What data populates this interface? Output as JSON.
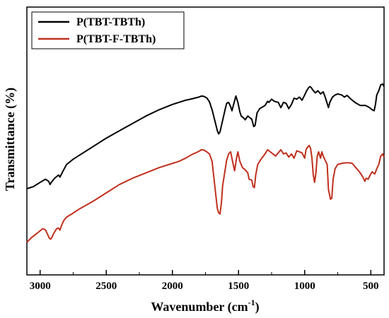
{
  "chart_data": {
    "type": "line",
    "title": "",
    "xlabel": "Wavenumber (cm",
    "xlabel_sup": "-1",
    "xlabel_close": ")",
    "ylabel": "Transmittance (%)",
    "xlim": [
      3100,
      400
    ],
    "x_reversed": true,
    "y_ticks_shown": false,
    "grid": false,
    "legend_position": "top-left",
    "xticks": [
      3000,
      2500,
      2000,
      1500,
      1000,
      500
    ],
    "xtick_labels": [
      "3000",
      "2500",
      "2000",
      "1500",
      "1000",
      "500"
    ],
    "series": [
      {
        "name": "P(TBT-TBTh)",
        "color": "#000000",
        "points": [
          [
            3100,
            0.255
          ],
          [
            3050,
            0.265
          ],
          [
            3000,
            0.285
          ],
          [
            2960,
            0.3
          ],
          [
            2935,
            0.29
          ],
          [
            2925,
            0.275
          ],
          [
            2915,
            0.285
          ],
          [
            2890,
            0.305
          ],
          [
            2860,
            0.32
          ],
          [
            2850,
            0.31
          ],
          [
            2830,
            0.335
          ],
          [
            2800,
            0.37
          ],
          [
            2750,
            0.395
          ],
          [
            2700,
            0.415
          ],
          [
            2600,
            0.455
          ],
          [
            2500,
            0.495
          ],
          [
            2400,
            0.53
          ],
          [
            2300,
            0.565
          ],
          [
            2200,
            0.6
          ],
          [
            2100,
            0.63
          ],
          [
            2000,
            0.655
          ],
          [
            1950,
            0.665
          ],
          [
            1900,
            0.675
          ],
          [
            1850,
            0.682
          ],
          [
            1800,
            0.69
          ],
          [
            1780,
            0.695
          ],
          [
            1760,
            0.693
          ],
          [
            1740,
            0.686
          ],
          [
            1720,
            0.668
          ],
          [
            1700,
            0.63
          ],
          [
            1680,
            0.58
          ],
          [
            1660,
            0.53
          ],
          [
            1650,
            0.515
          ],
          [
            1640,
            0.525
          ],
          [
            1620,
            0.58
          ],
          [
            1600,
            0.635
          ],
          [
            1590,
            0.66
          ],
          [
            1575,
            0.665
          ],
          [
            1560,
            0.645
          ],
          [
            1550,
            0.625
          ],
          [
            1535,
            0.66
          ],
          [
            1520,
            0.695
          ],
          [
            1505,
            0.665
          ],
          [
            1490,
            0.62
          ],
          [
            1480,
            0.6
          ],
          [
            1460,
            0.59
          ],
          [
            1450,
            0.582
          ],
          [
            1430,
            0.6
          ],
          [
            1400,
            0.585
          ],
          [
            1385,
            0.55
          ],
          [
            1375,
            0.555
          ],
          [
            1360,
            0.615
          ],
          [
            1340,
            0.635
          ],
          [
            1300,
            0.65
          ],
          [
            1280,
            0.67
          ],
          [
            1270,
            0.665
          ],
          [
            1250,
            0.68
          ],
          [
            1230,
            0.67
          ],
          [
            1200,
            0.665
          ],
          [
            1180,
            0.64
          ],
          [
            1160,
            0.665
          ],
          [
            1140,
            0.66
          ],
          [
            1120,
            0.635
          ],
          [
            1100,
            0.655
          ],
          [
            1080,
            0.685
          ],
          [
            1060,
            0.68
          ],
          [
            1040,
            0.69
          ],
          [
            1020,
            0.675
          ],
          [
            1000,
            0.7
          ],
          [
            985,
            0.72
          ],
          [
            970,
            0.735
          ],
          [
            960,
            0.74
          ],
          [
            950,
            0.735
          ],
          [
            940,
            0.725
          ],
          [
            920,
            0.71
          ],
          [
            900,
            0.72
          ],
          [
            880,
            0.705
          ],
          [
            860,
            0.715
          ],
          [
            845,
            0.69
          ],
          [
            830,
            0.66
          ],
          [
            820,
            0.64
          ],
          [
            810,
            0.665
          ],
          [
            790,
            0.69
          ],
          [
            770,
            0.7
          ],
          [
            750,
            0.705
          ],
          [
            720,
            0.7
          ],
          [
            700,
            0.69
          ],
          [
            680,
            0.698
          ],
          [
            650,
            0.68
          ],
          [
            620,
            0.665
          ],
          [
            580,
            0.65
          ],
          [
            540,
            0.65
          ],
          [
            510,
            0.64
          ],
          [
            490,
            0.63
          ],
          [
            475,
            0.625
          ],
          [
            465,
            0.655
          ],
          [
            455,
            0.7
          ],
          [
            440,
            0.72
          ],
          [
            425,
            0.748
          ],
          [
            410,
            0.752
          ],
          [
            400,
            0.74
          ]
        ]
      },
      {
        "name": "P(TBT-F-TBTh)",
        "color": "#c0301e",
        "points": [
          [
            3100,
            0.0
          ],
          [
            3070,
            0.02
          ],
          [
            3040,
            0.035
          ],
          [
            3010,
            0.05
          ],
          [
            2980,
            0.065
          ],
          [
            2960,
            0.06
          ],
          [
            2945,
            0.04
          ],
          [
            2930,
            0.02
          ],
          [
            2920,
            0.015
          ],
          [
            2910,
            0.025
          ],
          [
            2895,
            0.045
          ],
          [
            2875,
            0.065
          ],
          [
            2860,
            0.068
          ],
          [
            2850,
            0.058
          ],
          [
            2835,
            0.085
          ],
          [
            2820,
            0.105
          ],
          [
            2800,
            0.12
          ],
          [
            2760,
            0.135
          ],
          [
            2700,
            0.16
          ],
          [
            2600,
            0.195
          ],
          [
            2500,
            0.235
          ],
          [
            2400,
            0.275
          ],
          [
            2300,
            0.305
          ],
          [
            2200,
            0.33
          ],
          [
            2100,
            0.355
          ],
          [
            2000,
            0.375
          ],
          [
            1950,
            0.385
          ],
          [
            1900,
            0.4
          ],
          [
            1850,
            0.418
          ],
          [
            1800,
            0.432
          ],
          [
            1780,
            0.44
          ],
          [
            1760,
            0.438
          ],
          [
            1740,
            0.43
          ],
          [
            1720,
            0.42
          ],
          [
            1700,
            0.385
          ],
          [
            1685,
            0.3
          ],
          [
            1670,
            0.215
          ],
          [
            1660,
            0.16
          ],
          [
            1650,
            0.14
          ],
          [
            1640,
            0.135
          ],
          [
            1630,
            0.185
          ],
          [
            1620,
            0.27
          ],
          [
            1605,
            0.33
          ],
          [
            1590,
            0.39
          ],
          [
            1575,
            0.42
          ],
          [
            1560,
            0.43
          ],
          [
            1545,
            0.385
          ],
          [
            1530,
            0.34
          ],
          [
            1515,
            0.4
          ],
          [
            1505,
            0.43
          ],
          [
            1490,
            0.385
          ],
          [
            1470,
            0.355
          ],
          [
            1450,
            0.345
          ],
          [
            1430,
            0.33
          ],
          [
            1420,
            0.3
          ],
          [
            1400,
            0.295
          ],
          [
            1390,
            0.265
          ],
          [
            1380,
            0.26
          ],
          [
            1370,
            0.32
          ],
          [
            1355,
            0.37
          ],
          [
            1330,
            0.395
          ],
          [
            1300,
            0.42
          ],
          [
            1280,
            0.44
          ],
          [
            1260,
            0.43
          ],
          [
            1240,
            0.42
          ],
          [
            1220,
            0.41
          ],
          [
            1200,
            0.425
          ],
          [
            1180,
            0.44
          ],
          [
            1160,
            0.42
          ],
          [
            1140,
            0.425
          ],
          [
            1120,
            0.405
          ],
          [
            1100,
            0.42
          ],
          [
            1080,
            0.4
          ],
          [
            1060,
            0.435
          ],
          [
            1040,
            0.43
          ],
          [
            1020,
            0.425
          ],
          [
            1000,
            0.4
          ],
          [
            990,
            0.44
          ],
          [
            975,
            0.455
          ],
          [
            965,
            0.46
          ],
          [
            955,
            0.445
          ],
          [
            945,
            0.4
          ],
          [
            935,
            0.32
          ],
          [
            925,
            0.285
          ],
          [
            915,
            0.33
          ],
          [
            905,
            0.41
          ],
          [
            895,
            0.43
          ],
          [
            880,
            0.4
          ],
          [
            870,
            0.43
          ],
          [
            860,
            0.41
          ],
          [
            845,
            0.39
          ],
          [
            830,
            0.37
          ],
          [
            820,
            0.25
          ],
          [
            805,
            0.205
          ],
          [
            795,
            0.21
          ],
          [
            785,
            0.3
          ],
          [
            770,
            0.35
          ],
          [
            750,
            0.37
          ],
          [
            720,
            0.375
          ],
          [
            690,
            0.378
          ],
          [
            660,
            0.378
          ],
          [
            640,
            0.375
          ],
          [
            620,
            0.36
          ],
          [
            600,
            0.345
          ],
          [
            580,
            0.33
          ],
          [
            560,
            0.31
          ],
          [
            545,
            0.29
          ],
          [
            535,
            0.305
          ],
          [
            520,
            0.3
          ],
          [
            505,
            0.32
          ],
          [
            490,
            0.335
          ],
          [
            470,
            0.325
          ],
          [
            455,
            0.35
          ],
          [
            440,
            0.37
          ],
          [
            425,
            0.41
          ],
          [
            410,
            0.42
          ],
          [
            400,
            0.405
          ]
        ]
      }
    ]
  }
}
